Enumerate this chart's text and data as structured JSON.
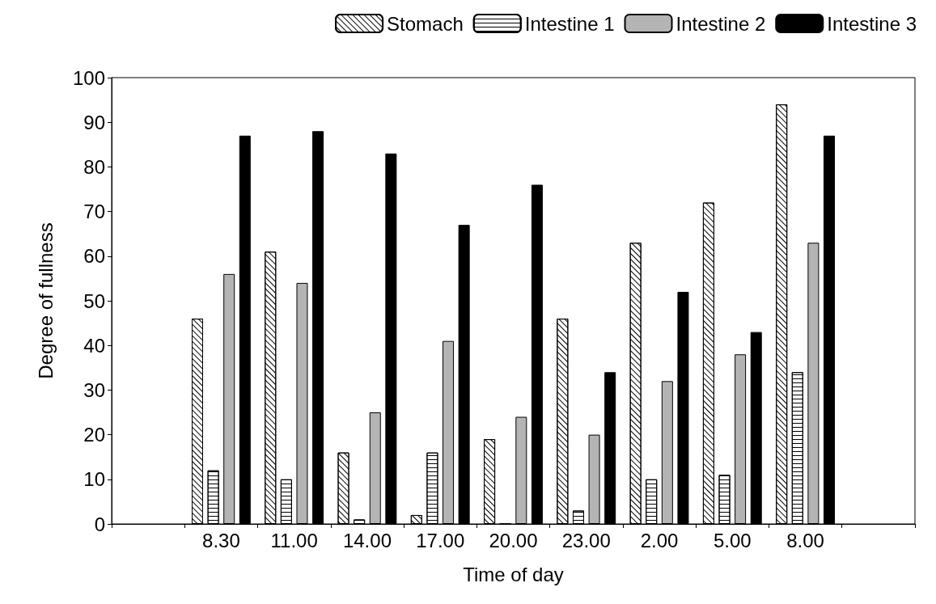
{
  "chart_data": {
    "type": "bar",
    "xlabel": "Time of day",
    "ylabel": "Degree of fullness",
    "categories": [
      null,
      "8.30",
      "11.00",
      "14.00",
      "17.00",
      "20.00",
      "23.00",
      "2.00",
      "5.00",
      "8.00",
      null
    ],
    "series": [
      {
        "name": "Stomach",
        "color": "#ffffff",
        "values": [
          null,
          46,
          61,
          16,
          2,
          19,
          46,
          63,
          72,
          94,
          null
        ]
      },
      {
        "name": "Intestine 1",
        "color": "#ffffff",
        "values": [
          null,
          12,
          10,
          1,
          16,
          0,
          3,
          10,
          11,
          34,
          null
        ]
      },
      {
        "name": "Intestine 2",
        "color": "#b4b4b4",
        "values": [
          null,
          56,
          54,
          25,
          41,
          24,
          20,
          32,
          38,
          63,
          null
        ]
      },
      {
        "name": "Intestine 3",
        "color": "#000000",
        "values": [
          null,
          87,
          88,
          83,
          67,
          76,
          34,
          52,
          43,
          87,
          null
        ]
      }
    ],
    "ylim": [
      0,
      100
    ],
    "yticks": [
      0,
      10,
      20,
      30,
      40,
      50,
      60,
      70,
      80,
      90,
      100
    ],
    "grid": false,
    "legend": "top right"
  }
}
